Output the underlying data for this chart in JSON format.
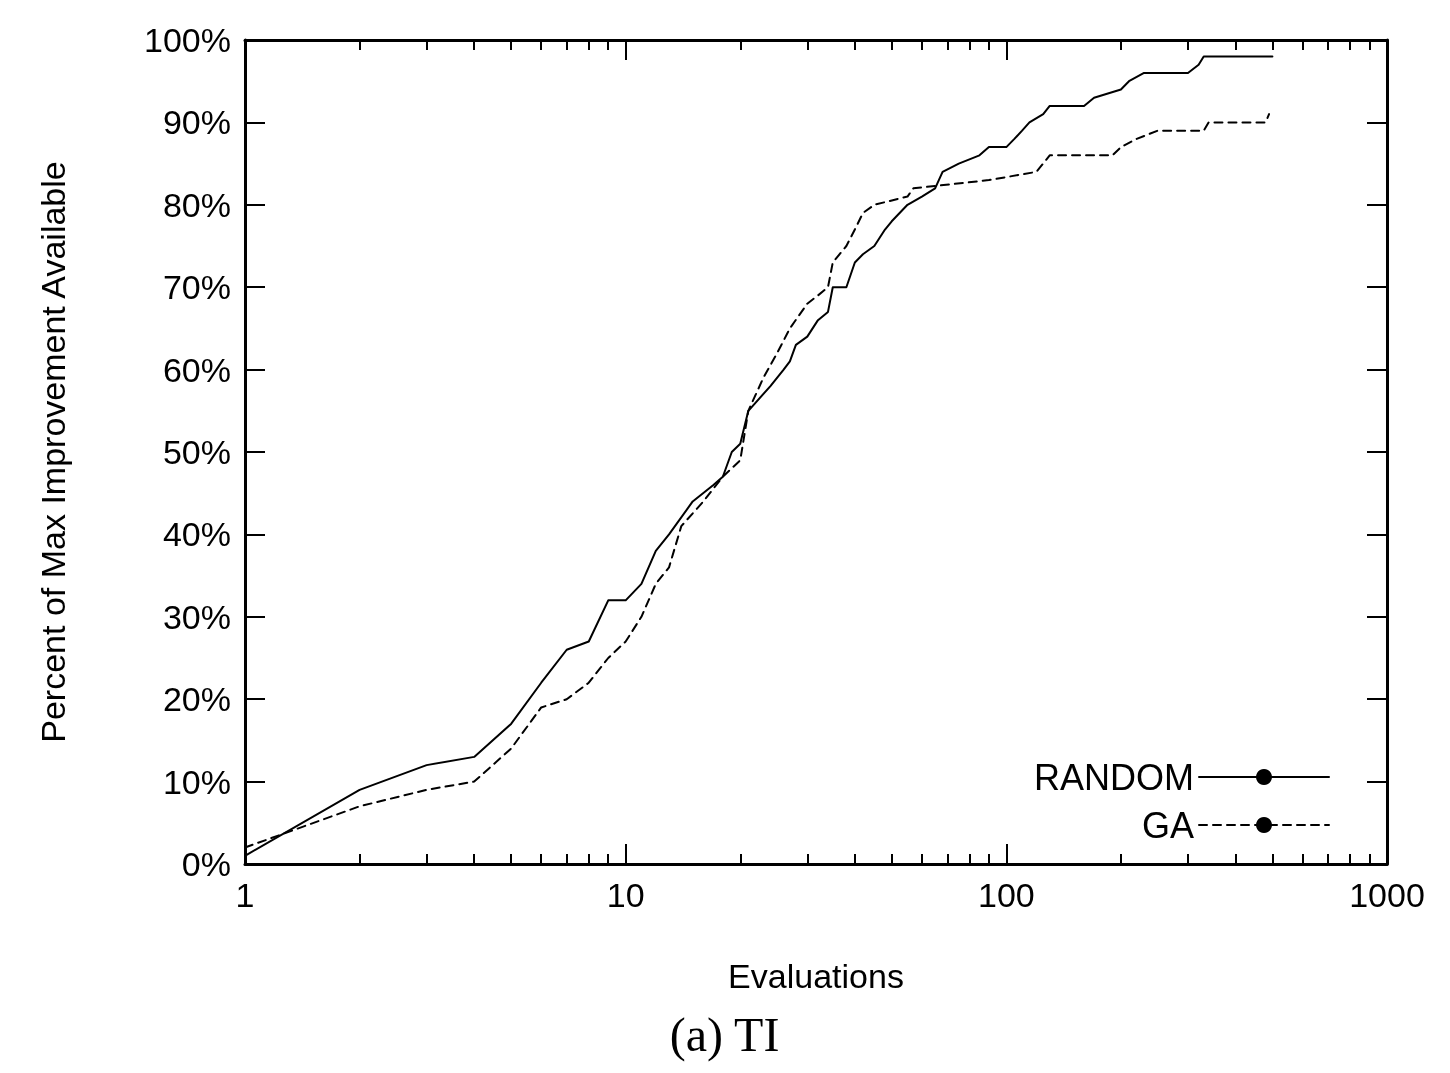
{
  "chart_data": {
    "type": "line",
    "xlabel": "Evaluations",
    "ylabel": "Percent of Max Improvement Available",
    "annotations": [
      "(a) TI"
    ],
    "log": "x",
    "xlim": [
      1,
      1000
    ],
    "xticks": [
      1,
      10,
      100,
      1000
    ],
    "ylim": [
      0,
      100
    ],
    "yticks": [
      {
        "value": 0,
        "label": "0%"
      },
      {
        "value": 10,
        "label": "10%"
      },
      {
        "value": 20,
        "label": "20%"
      },
      {
        "value": 30,
        "label": "30%"
      },
      {
        "value": 40,
        "label": "40%"
      },
      {
        "value": 50,
        "label": "50%"
      },
      {
        "value": 60,
        "label": "60%"
      },
      {
        "value": 70,
        "label": "70%"
      },
      {
        "value": 80,
        "label": "80%"
      },
      {
        "value": 90,
        "label": "90%"
      },
      {
        "value": 100,
        "label": "100%"
      }
    ],
    "grid": false,
    "legend": "bottom right",
    "marker": "none",
    "series": [
      {
        "name": "RANDOM",
        "color": "#000000",
        "line_style": "solid",
        "x": [
          1,
          2,
          3,
          4,
          5,
          6,
          7,
          8,
          9,
          10,
          11,
          12,
          13,
          15,
          17,
          18,
          19,
          20,
          21,
          24,
          26,
          27,
          28,
          30,
          32,
          34,
          35,
          38,
          40,
          42,
          45,
          48,
          50,
          55,
          60,
          65,
          68,
          75,
          85,
          90,
          100,
          105,
          110,
          115,
          125,
          130,
          160,
          170,
          200,
          210,
          230,
          300,
          320,
          330,
          500
        ],
        "values": [
          1,
          9,
          12,
          13,
          17,
          22,
          26,
          27,
          32,
          32,
          34,
          38,
          40,
          44,
          46,
          47,
          50,
          51,
          55,
          58,
          60,
          61,
          63,
          64,
          66,
          67,
          70,
          70,
          73,
          74,
          75,
          77,
          78,
          80,
          81,
          82,
          84,
          85,
          86,
          87,
          87,
          88,
          89,
          90,
          91,
          92,
          92,
          93,
          94,
          95,
          96,
          96,
          97,
          98,
          98
        ]
      },
      {
        "name": "GA",
        "color": "#000000",
        "line_style": "dashed",
        "x": [
          1,
          2,
          3,
          4,
          5,
          6,
          7,
          8,
          9,
          10,
          11,
          12,
          13,
          14,
          16,
          18,
          20,
          21,
          23,
          25,
          27,
          30,
          32,
          34,
          35,
          38,
          40,
          42,
          45,
          55,
          57,
          90,
          120,
          130,
          190,
          200,
          220,
          250,
          330,
          340,
          480,
          490
        ],
        "values": [
          2,
          7,
          9,
          10,
          14,
          19,
          20,
          22,
          25,
          27,
          30,
          34,
          36,
          41,
          44,
          47,
          49,
          55,
          59,
          62,
          65,
          68,
          69,
          70,
          73,
          75,
          77,
          79,
          80,
          81,
          82,
          83,
          84,
          86,
          86,
          87,
          88,
          89,
          89,
          90,
          90,
          91
        ]
      }
    ]
  }
}
